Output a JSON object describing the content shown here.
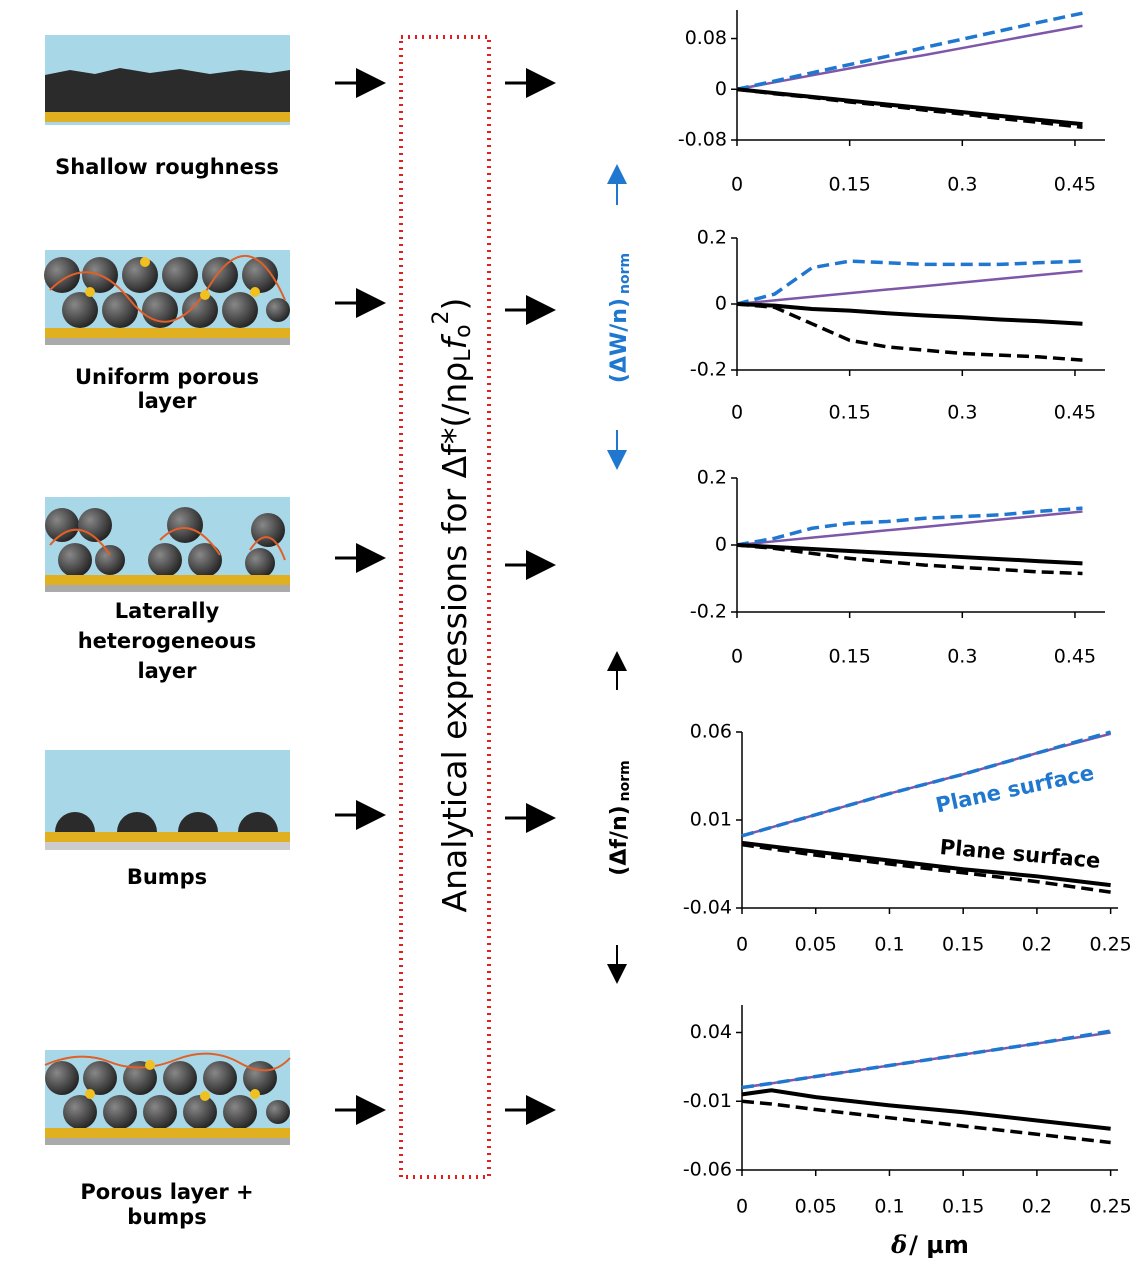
{
  "schematics": [
    {
      "label": [
        "Shallow roughness"
      ]
    },
    {
      "label": [
        "Uniform porous",
        "layer"
      ]
    },
    {
      "label": [
        "Laterally",
        "heterogeneous",
        "layer"
      ]
    },
    {
      "label": [
        "Bumps"
      ]
    },
    {
      "label": [
        "Porous layer +",
        "bumps"
      ]
    }
  ],
  "center_label": {
    "main": "Analytical expressions for Δf*(/nρ",
    "sub1": "L",
    "f": "f",
    "sub2": "o",
    "sup": "2",
    "close": ")"
  },
  "axis_labels": {
    "dissipation": "(ΔW/n)",
    "dissipation_sub": "norm",
    "frequency": "(Δf/n)",
    "frequency_sub": "norm",
    "x_symbol": "δ",
    "x_unit": "/ µm"
  },
  "chart_data": [
    {
      "type": "line",
      "x": [
        0,
        0.05,
        0.1,
        0.15,
        0.2,
        0.25,
        0.3,
        0.35,
        0.4,
        0.46
      ],
      "xlim": [
        0,
        0.49
      ],
      "xticks": [
        0,
        0.15,
        0.3,
        0.45
      ],
      "ylim": [
        -0.08,
        0.125
      ],
      "yticks": [
        0.08,
        0,
        -0.08
      ],
      "series": [
        {
          "color": "#7e57a8",
          "dashed": false,
          "values": [
            0,
            0.011,
            0.022,
            0.033,
            0.044,
            0.054,
            0.065,
            0.076,
            0.087,
            0.1
          ]
        },
        {
          "color": "#1f77d0",
          "dashed": true,
          "values": [
            0,
            0.013,
            0.026,
            0.039,
            0.052,
            0.066,
            0.079,
            0.092,
            0.105,
            0.12
          ]
        },
        {
          "color": "#000000",
          "dashed": false,
          "values": [
            0,
            -0.006,
            -0.012,
            -0.018,
            -0.024,
            -0.03,
            -0.036,
            -0.042,
            -0.048,
            -0.055
          ]
        },
        {
          "color": "#000000",
          "dashed": true,
          "values": [
            0,
            -0.007,
            -0.013,
            -0.02,
            -0.026,
            -0.033,
            -0.039,
            -0.046,
            -0.052,
            -0.06
          ]
        }
      ]
    },
    {
      "type": "line",
      "x": [
        0,
        0.05,
        0.1,
        0.15,
        0.2,
        0.25,
        0.3,
        0.35,
        0.4,
        0.46
      ],
      "xlim": [
        0,
        0.49
      ],
      "xticks": [
        0,
        0.15,
        0.3,
        0.45
      ],
      "ylim": [
        -0.2,
        0.2
      ],
      "yticks": [
        0.2,
        0,
        -0.2
      ],
      "series": [
        {
          "color": "#7e57a8",
          "dashed": false,
          "values": [
            0,
            0.011,
            0.022,
            0.033,
            0.044,
            0.054,
            0.065,
            0.076,
            0.087,
            0.1
          ]
        },
        {
          "color": "#1f77d0",
          "dashed": true,
          "values": [
            0,
            0.03,
            0.11,
            0.13,
            0.125,
            0.12,
            0.12,
            0.12,
            0.125,
            0.13
          ]
        },
        {
          "color": "#000000",
          "dashed": false,
          "values": [
            0,
            -0.005,
            -0.015,
            -0.02,
            -0.028,
            -0.035,
            -0.04,
            -0.047,
            -0.052,
            -0.06
          ]
        },
        {
          "color": "#000000",
          "dashed": true,
          "values": [
            0,
            -0.01,
            -0.06,
            -0.11,
            -0.13,
            -0.14,
            -0.15,
            -0.155,
            -0.16,
            -0.17
          ]
        }
      ]
    },
    {
      "type": "line",
      "x": [
        0,
        0.05,
        0.1,
        0.15,
        0.2,
        0.25,
        0.3,
        0.35,
        0.4,
        0.46
      ],
      "xlim": [
        0,
        0.49
      ],
      "xticks": [
        0,
        0.15,
        0.3,
        0.45
      ],
      "ylim": [
        -0.2,
        0.2
      ],
      "yticks": [
        0.2,
        0,
        -0.2
      ],
      "series": [
        {
          "color": "#7e57a8",
          "dashed": false,
          "values": [
            0,
            0.011,
            0.022,
            0.033,
            0.044,
            0.054,
            0.065,
            0.076,
            0.087,
            0.1
          ]
        },
        {
          "color": "#1f77d0",
          "dashed": true,
          "values": [
            0,
            0.02,
            0.05,
            0.065,
            0.07,
            0.08,
            0.085,
            0.09,
            0.1,
            0.11
          ]
        },
        {
          "color": "#000000",
          "dashed": false,
          "values": [
            0,
            -0.006,
            -0.012,
            -0.018,
            -0.024,
            -0.03,
            -0.036,
            -0.042,
            -0.048,
            -0.055
          ]
        },
        {
          "color": "#000000",
          "dashed": true,
          "values": [
            0,
            -0.01,
            -0.025,
            -0.04,
            -0.05,
            -0.06,
            -0.067,
            -0.073,
            -0.08,
            -0.085
          ]
        }
      ]
    },
    {
      "type": "line",
      "x": [
        0,
        0.05,
        0.1,
        0.15,
        0.2,
        0.25
      ],
      "xlim": [
        0,
        0.255
      ],
      "xticks": [
        0,
        0.05,
        0.1,
        0.15,
        0.2,
        0.25
      ],
      "ylim": [
        -0.04,
        0.06
      ],
      "yticks": [
        0.06,
        0.01,
        -0.04
      ],
      "annotations": [
        "Plane surface",
        "Plane surface"
      ],
      "annotation_colors": [
        "#1f77d0",
        "#000000"
      ],
      "series": [
        {
          "color": "#7e57a8",
          "dashed": false,
          "values": [
            0.001,
            0.013,
            0.025,
            0.036,
            0.048,
            0.059
          ]
        },
        {
          "color": "#1f77d0",
          "dashed": true,
          "values": [
            0.001,
            0.013,
            0.025,
            0.036,
            0.048,
            0.06
          ]
        },
        {
          "color": "#000000",
          "dashed": false,
          "values": [
            -0.003,
            -0.008,
            -0.013,
            -0.018,
            -0.022,
            -0.027
          ]
        },
        {
          "color": "#000000",
          "dashed": true,
          "values": [
            -0.004,
            -0.01,
            -0.015,
            -0.02,
            -0.025,
            -0.031
          ]
        }
      ]
    },
    {
      "type": "line",
      "x": [
        0,
        0.02,
        0.05,
        0.1,
        0.15,
        0.2,
        0.25
      ],
      "xlim": [
        0,
        0.255
      ],
      "xticks": [
        0,
        0.05,
        0.1,
        0.15,
        0.2,
        0.25
      ],
      "ylim": [
        -0.06,
        0.06
      ],
      "yticks": [
        0.04,
        -0.01,
        -0.06
      ],
      "series": [
        {
          "color": "#7e57a8",
          "dashed": false,
          "values": [
            0,
            0.003,
            0.008,
            0.016,
            0.024,
            0.032,
            0.04
          ]
        },
        {
          "color": "#1f77d0",
          "dashed": true,
          "values": [
            0,
            0.003,
            0.008,
            0.016,
            0.024,
            0.032,
            0.041
          ]
        },
        {
          "color": "#000000",
          "dashed": false,
          "values": [
            -0.005,
            -0.002,
            -0.007,
            -0.013,
            -0.018,
            -0.024,
            -0.03
          ]
        },
        {
          "color": "#000000",
          "dashed": true,
          "values": [
            -0.01,
            -0.012,
            -0.016,
            -0.022,
            -0.028,
            -0.034,
            -0.04
          ]
        }
      ]
    }
  ]
}
